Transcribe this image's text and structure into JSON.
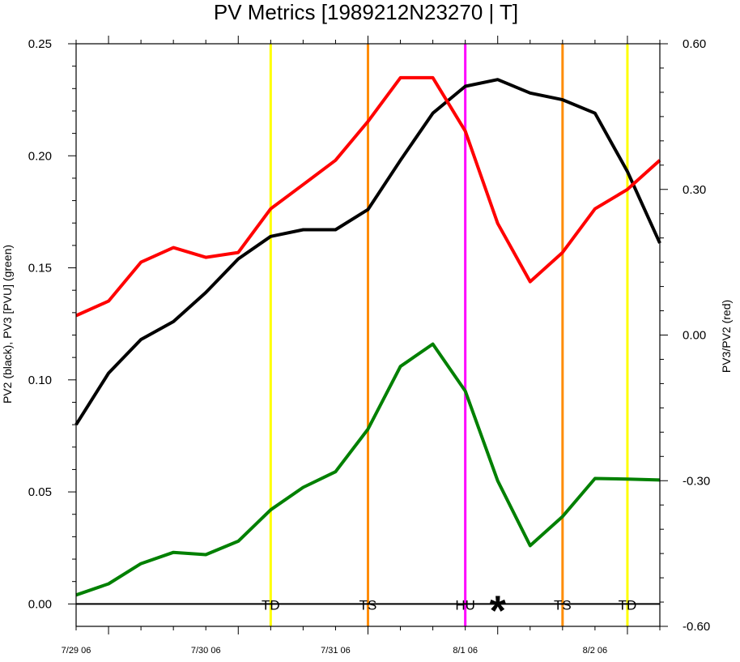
{
  "chart_data": {
    "type": "line",
    "title": "PV Metrics [1989212N23270 | T]",
    "ylabel_left": "PV2 (black), PV3 [PVU] (green)",
    "ylabel_right": "PV3/PV2 (red)",
    "ylim_left": [
      -0.01,
      0.25
    ],
    "ylim_right": [
      -0.6,
      0.6
    ],
    "yticks_left": [
      "0.00",
      "0.05",
      "0.10",
      "0.15",
      "0.20",
      "0.25"
    ],
    "yticks_right": [
      "-0.60",
      "-0.30",
      "0.00",
      "0.30",
      "0.60"
    ],
    "x": [
      "7/29 00",
      "7/29 06",
      "7/29 12",
      "7/29 18",
      "7/30 00",
      "7/30 06",
      "7/30 12",
      "7/30 18",
      "7/31 00",
      "7/31 06",
      "7/31 12",
      "7/31 18",
      "8/1 00",
      "8/1 06",
      "8/1 12",
      "8/1 18",
      "8/2 00",
      "8/2 06",
      "8/2 12"
    ],
    "xticks": [
      "7/29 06",
      "7/30 06",
      "7/31 06",
      "8/1 06",
      "8/2 06"
    ],
    "series": [
      {
        "axis": "left",
        "color": "#000000",
        "values": [
          0.08,
          0.103,
          0.118,
          0.126,
          0.139,
          0.154,
          0.164,
          0.167,
          0.167,
          0.176,
          0.198,
          0.219,
          0.231,
          0.234,
          0.228,
          0.225,
          0.219,
          0.193,
          0.161
        ]
      },
      {
        "axis": "left",
        "color": "#008000",
        "values": [
          0.004,
          0.009,
          0.018,
          0.023,
          0.022,
          0.028,
          0.042,
          0.052,
          0.059,
          0.078,
          0.106,
          0.116,
          0.095,
          0.055,
          0.026,
          0.039,
          0.056,
          0.0557,
          0.0553
        ]
      },
      {
        "axis": "right",
        "color": "#ff0000",
        "values": [
          0.04,
          0.07,
          0.15,
          0.18,
          0.16,
          0.17,
          0.26,
          0.31,
          0.36,
          0.44,
          0.53,
          0.53,
          0.42,
          0.23,
          0.11,
          0.17,
          0.26,
          0.3,
          0.36
        ]
      }
    ],
    "stage_lines": [
      {
        "x": "7/30 12",
        "label": "TD",
        "color": "#ffff00"
      },
      {
        "x": "7/31 06",
        "label": "TS",
        "color": "#ff8c00"
      },
      {
        "x": "8/1 00",
        "label": "HU",
        "color": "#ff00ff"
      },
      {
        "x": "8/1 18",
        "label": "TS",
        "color": "#ff8c00"
      },
      {
        "x": "8/2 06",
        "label": "TD",
        "color": "#ffff00"
      }
    ],
    "marker": {
      "x": "8/1 06",
      "symbol": "*"
    },
    "zero_line": true,
    "grid": false
  }
}
